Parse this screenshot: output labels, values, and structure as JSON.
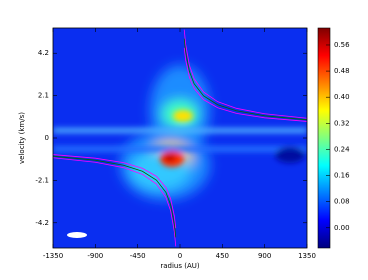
{
  "chart_data": {
    "type": "pv-diagram",
    "xlabel": "radius (AU)",
    "ylabel": "velocity (km/s)",
    "xlim": [
      -1350,
      1350
    ],
    "xticks": [
      -1350,
      -900,
      -450,
      0,
      450,
      900,
      1350
    ],
    "ylim": [
      -5.45,
      5.45
    ],
    "yticks": [
      -4.2,
      -2.1,
      0,
      2.1,
      4.2
    ],
    "colorbar": {
      "lim": [
        -0.062,
        0.612
      ],
      "ticks": [
        {
          "value": 0,
          "label": "0.00"
        },
        {
          "value": 0.08,
          "label": "0.08"
        },
        {
          "value": 0.16,
          "label": "0.16"
        },
        {
          "value": 0.24,
          "label": "0.24"
        },
        {
          "value": 0.32,
          "label": "0.32"
        },
        {
          "value": 0.4,
          "label": "0.40"
        },
        {
          "value": 0.48,
          "label": "0.48"
        },
        {
          "value": 0.56,
          "label": "0.56"
        }
      ]
    },
    "series": [
      {
        "color": "#ff00ff",
        "x": [
          -1350,
          -900,
          -600,
          -400,
          -250,
          -150,
          -100,
          -60,
          -45,
          0,
          45,
          60,
          100,
          150,
          250,
          400,
          600,
          900,
          1350
        ],
        "values": [
          -0.98,
          -1.2,
          -1.47,
          -1.8,
          -2.28,
          -2.94,
          -3.6,
          -4.65,
          -5.37,
          null,
          5.37,
          4.65,
          3.6,
          2.94,
          2.28,
          1.8,
          1.47,
          1.2,
          0.98
        ]
      },
      {
        "color": "#006400",
        "x": [
          -1350,
          -900,
          -600,
          -400,
          -250,
          -150,
          -100,
          -60,
          -45,
          0,
          45,
          60,
          100,
          150,
          250,
          400,
          600,
          900,
          1350
        ],
        "values": [
          -0.9,
          -1.1,
          -1.35,
          -1.65,
          -2.09,
          -2.69,
          -3.3,
          -4.26,
          -4.92,
          null,
          4.92,
          4.26,
          3.3,
          2.69,
          2.09,
          1.65,
          1.35,
          1.1,
          0.9
        ]
      },
      {
        "color": "#ff00ff",
        "x": [
          -1350,
          -900,
          -600,
          -400,
          -250,
          -150,
          -100,
          -60,
          -45,
          0,
          45,
          60,
          100,
          150,
          250,
          400,
          600,
          900,
          1350
        ],
        "values": [
          -0.82,
          -1.0,
          -1.22,
          -1.5,
          -1.9,
          -2.45,
          -3.0,
          -3.87,
          -4.47,
          null,
          4.47,
          3.87,
          3.0,
          2.45,
          1.9,
          1.5,
          1.22,
          1.0,
          0.82
        ]
      }
    ]
  }
}
